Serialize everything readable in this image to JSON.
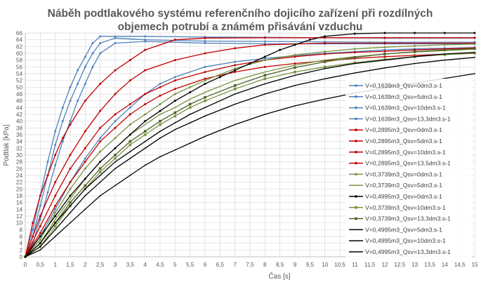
{
  "chart_data": {
    "type": "line",
    "title": "Náběh podtlakového systému referenčního dojicího zařízení při rozdílných objemech potrubí a známém přisávání vzduchu",
    "title_lines": [
      "Náběh podtlakového systému referenčního dojicího zařízení při rozdílných",
      "objemech potrubí a známém přisávání vzduchu"
    ],
    "xlabel": "Čas [s]",
    "ylabel": "Podtlak [kPa]",
    "xlim": [
      0,
      15
    ],
    "ylim": [
      0,
      66
    ],
    "xticks": [
      "0",
      "0,5",
      "1",
      "1,5",
      "2",
      "2,5",
      "3",
      "3,5",
      "4",
      "4,5",
      "5",
      "5,5",
      "6",
      "6,5",
      "7",
      "7,5",
      "8",
      "8,5",
      "9",
      "9,5",
      "10",
      "10,5",
      "11",
      "11,5",
      "12",
      "12,5",
      "13",
      "13,5",
      "14",
      "14,5",
      "15"
    ],
    "yticks": [
      "0",
      "2",
      "4",
      "6",
      "8",
      "10",
      "12",
      "14",
      "16",
      "18",
      "20",
      "22",
      "24",
      "26",
      "28",
      "30",
      "32",
      "34",
      "36",
      "38",
      "40",
      "42",
      "44",
      "46",
      "48",
      "50",
      "52",
      "54",
      "56",
      "58",
      "60",
      "62",
      "64",
      "66"
    ],
    "grid": true,
    "legend_position": "right",
    "series": [
      {
        "name": "V=0,1639m3_Qsv=0dm3.s-1",
        "color": "#4f81bd",
        "marker": "dot",
        "x": [
          0,
          0.25,
          0.5,
          0.75,
          1,
          1.25,
          1.5,
          1.75,
          2,
          2.25,
          2.5,
          3,
          4,
          6,
          8,
          10,
          12,
          15
        ],
        "y": [
          0,
          8,
          18,
          28,
          37,
          44,
          50,
          55,
          59,
          63,
          65,
          65,
          65,
          64.8,
          64.7,
          64.6,
          64.5,
          64.5
        ]
      },
      {
        "name": "V=0,1639m3_Qsv=5dm3.s-1",
        "color": "#4f81bd",
        "marker": "dot",
        "x": [
          0,
          0.25,
          0.5,
          0.75,
          1,
          1.25,
          1.5,
          1.75,
          2,
          2.25,
          2.5,
          3,
          4,
          6,
          8,
          10,
          12,
          15
        ],
        "y": [
          0,
          6,
          15,
          24,
          33,
          40,
          46,
          51,
          56,
          60,
          63,
          64.5,
          64,
          63.6,
          63.5,
          63.4,
          63.3,
          63.3
        ]
      },
      {
        "name": "V=0,1639m3_Qsv=10dm3.s-1",
        "color": "#4f81bd",
        "marker": "dot",
        "x": [
          0,
          0.25,
          0.5,
          0.75,
          1,
          1.25,
          1.5,
          1.75,
          2,
          2.25,
          2.5,
          3,
          4,
          6,
          8,
          10,
          12,
          15
        ],
        "y": [
          0,
          4,
          11,
          19,
          27,
          34,
          40,
          46,
          51,
          56,
          60,
          63,
          63.5,
          63,
          62.8,
          62.8,
          62.8,
          62.8
        ]
      },
      {
        "name": "V=0,1639m3_Qsv=13,3dm3.s-1",
        "color": "#4f81bd",
        "marker": "dot",
        "x": [
          0,
          0.5,
          1,
          1.5,
          2,
          2.5,
          3,
          3.5,
          4,
          4.5,
          5,
          6,
          7,
          8,
          9,
          10,
          11,
          12,
          13,
          14,
          15
        ],
        "y": [
          0,
          6,
          14,
          22,
          29,
          35,
          40,
          44,
          48,
          51,
          53,
          56,
          57.5,
          58.5,
          59.3,
          60,
          60.5,
          61,
          61.3,
          61.5,
          61.7
        ]
      },
      {
        "name": "V=0,2895m3_Qsv=0dm3.s-1",
        "color": "#c00000",
        "marker": "dot",
        "x": [
          0,
          0.25,
          0.5,
          0.75,
          1,
          1.25,
          1.5,
          2,
          2.5,
          3,
          3.5,
          4,
          5,
          6,
          8,
          10,
          12,
          15
        ],
        "y": [
          0,
          10,
          18,
          24,
          30,
          35,
          39,
          46,
          51,
          55,
          58,
          61,
          64,
          64.5,
          64.6,
          64.6,
          64.6,
          64.6
        ]
      },
      {
        "name": "V=0,2895m3_Qsv=5dm3.s-1",
        "color": "#c00000",
        "marker": "dot",
        "x": [
          0,
          0.25,
          0.5,
          1,
          1.5,
          2,
          2.5,
          3,
          3.5,
          4,
          5,
          6,
          7,
          8,
          10,
          12,
          15
        ],
        "y": [
          0,
          6,
          12,
          22,
          30,
          37,
          43,
          48,
          52,
          55,
          58,
          60,
          61.5,
          62.5,
          63,
          63,
          63
        ]
      },
      {
        "name": "V=0,2895m3_Qsv=10dm3.s-1",
        "color": "#c00000",
        "marker": "dot",
        "x": [
          0,
          0.5,
          1,
          1.5,
          2,
          2.5,
          3,
          3.5,
          4,
          4.5,
          5,
          6,
          7,
          8,
          9,
          10,
          11,
          12,
          13,
          14,
          15
        ],
        "y": [
          0,
          9,
          18,
          26,
          32,
          38,
          42,
          45,
          48,
          50,
          52,
          54.5,
          56.5,
          58,
          59,
          59.8,
          60.3,
          60.6,
          61,
          61.3,
          61.6
        ]
      },
      {
        "name": "V=0,2895m3_Qsv=13,5dm3.s-1",
        "color": "#c00000",
        "marker": "dot",
        "x": [
          0,
          0.5,
          1,
          1.5,
          2,
          2.5,
          3,
          3.5,
          4,
          4.5,
          5,
          6,
          7,
          8,
          9,
          10,
          11,
          12,
          13,
          14,
          15
        ],
        "y": [
          0,
          7,
          15,
          22,
          28,
          34,
          38,
          42,
          45,
          47.5,
          49.5,
          52.5,
          54.5,
          56,
          57,
          57.8,
          58.5,
          59,
          59.4,
          59.7,
          60
        ]
      },
      {
        "name": "V=0,3739m3_Qsv=0dm3.s-1",
        "color": "#77933c",
        "marker": "dot",
        "x": [
          0,
          0.5,
          1,
          1.5,
          2,
          2.5,
          3,
          3.5,
          4,
          4.5,
          5,
          5.5,
          6,
          7,
          8,
          9,
          10,
          11,
          12,
          13,
          14,
          15
        ],
        "y": [
          0,
          5,
          13,
          20,
          26,
          31,
          35,
          39,
          42,
          45,
          48,
          50,
          52,
          55.5,
          58,
          59.5,
          60.5,
          61.3,
          61.8,
          62.2,
          62.5,
          62.7
        ]
      },
      {
        "name": "V=0,3739m3_Qsv=5dm3.s-1",
        "color": "#77933c",
        "marker": "none",
        "x": [
          0,
          0.5,
          1,
          1.5,
          2,
          2.5,
          3,
          3.5,
          4,
          4.5,
          5,
          5.5,
          6,
          7,
          8,
          9,
          10,
          11,
          12,
          13,
          14,
          15
        ],
        "y": [
          0,
          4,
          11,
          17,
          23,
          28,
          32,
          36,
          39,
          42,
          44,
          46.5,
          48.5,
          52,
          54.5,
          56.5,
          58,
          59,
          59.8,
          60.4,
          60.8,
          61.2
        ]
      },
      {
        "name": "V=0,4995m3_Qsv=0dm3.s-1",
        "color": "#000000",
        "marker": "dot",
        "x": [
          0,
          0.5,
          1,
          1.5,
          2,
          2.5,
          3,
          3.5,
          4,
          4.5,
          5,
          5.5,
          6,
          6.5,
          7,
          7.5,
          8,
          8.5,
          9,
          9.5,
          10,
          11,
          12,
          13,
          14,
          15
        ],
        "y": [
          0,
          6,
          12,
          18,
          23,
          28,
          32,
          36,
          40,
          43,
          46,
          48.5,
          51,
          53,
          55,
          57,
          59,
          61,
          62.5,
          64,
          65,
          65.8,
          66,
          66,
          66,
          66
        ]
      },
      {
        "name": "V=0,3739m3_Qsv=10dm3.s-1",
        "color": "#77933c",
        "marker": "square",
        "x": [
          0,
          0.5,
          1,
          1.5,
          2,
          2.5,
          3,
          3.5,
          4,
          4.5,
          5,
          5.5,
          6,
          7,
          8,
          9,
          10,
          11,
          12,
          13,
          14,
          15
        ],
        "y": [
          0,
          3,
          9,
          15,
          20,
          25,
          29,
          33,
          36,
          39,
          41.5,
          44,
          46,
          49.5,
          52.5,
          54.5,
          56,
          57.2,
          58.2,
          59,
          59.6,
          60
        ]
      },
      {
        "name": "V=0,3739m3_Qsv=13,3dm3.s-1",
        "color": "#4f6228",
        "marker": "square",
        "x": [
          0,
          0.5,
          1,
          1.5,
          2,
          2.5,
          3,
          3.5,
          4,
          4.5,
          5,
          5.5,
          6,
          7,
          8,
          9,
          10,
          11,
          12,
          13,
          14,
          15
        ],
        "y": [
          0,
          4,
          10,
          16,
          21,
          26,
          30,
          34,
          37,
          40,
          42.5,
          45,
          47,
          50.5,
          53.5,
          55.8,
          57.5,
          58.8,
          59.8,
          60.5,
          61,
          61.4
        ]
      },
      {
        "name": "V=0,4995m3_Qsv=5dm3.s-1",
        "color": "#000000",
        "marker": "none",
        "x": [
          0,
          0.5,
          1,
          1.5,
          2,
          2.5,
          3,
          3.5,
          4,
          4.5,
          5,
          5.5,
          6,
          7,
          8,
          9,
          10,
          11,
          12,
          13,
          14,
          15
        ],
        "y": [
          0,
          4,
          10,
          15,
          20,
          24,
          28,
          31,
          34,
          37,
          39.5,
          42,
          44,
          48,
          51,
          53.5,
          55.5,
          57,
          58,
          59,
          59.8,
          60.3
        ]
      },
      {
        "name": "V=0,4995m3_Qsv=10dm3.s-1",
        "color": "#000000",
        "marker": "none",
        "x": [
          0,
          0.5,
          1,
          1.5,
          2,
          2.5,
          3,
          3.5,
          4,
          4.5,
          5,
          5.5,
          6,
          7,
          8,
          9,
          10,
          11,
          12,
          13,
          14,
          15
        ],
        "y": [
          0,
          3,
          8,
          13,
          18,
          22,
          26,
          29,
          32,
          35,
          37.5,
          39.5,
          41.5,
          45,
          48,
          50.5,
          52.5,
          54.2,
          55.7,
          57,
          58,
          58.8
        ]
      },
      {
        "name": "V=0,4995m3_Qsv=13,3dm3.s-1",
        "color": "#000000",
        "marker": "none",
        "x": [
          0,
          0.5,
          1,
          1.5,
          2,
          2.5,
          3,
          3.5,
          4,
          4.5,
          5,
          5.5,
          6,
          7,
          8,
          9,
          10,
          11,
          12,
          13,
          14,
          15
        ],
        "y": [
          0,
          2,
          6,
          10,
          14,
          18,
          21,
          24,
          27,
          29.5,
          31.5,
          33.5,
          35.5,
          39,
          42,
          44.5,
          46.5,
          48.3,
          49.8,
          51.2,
          52.6,
          54
        ]
      }
    ]
  }
}
